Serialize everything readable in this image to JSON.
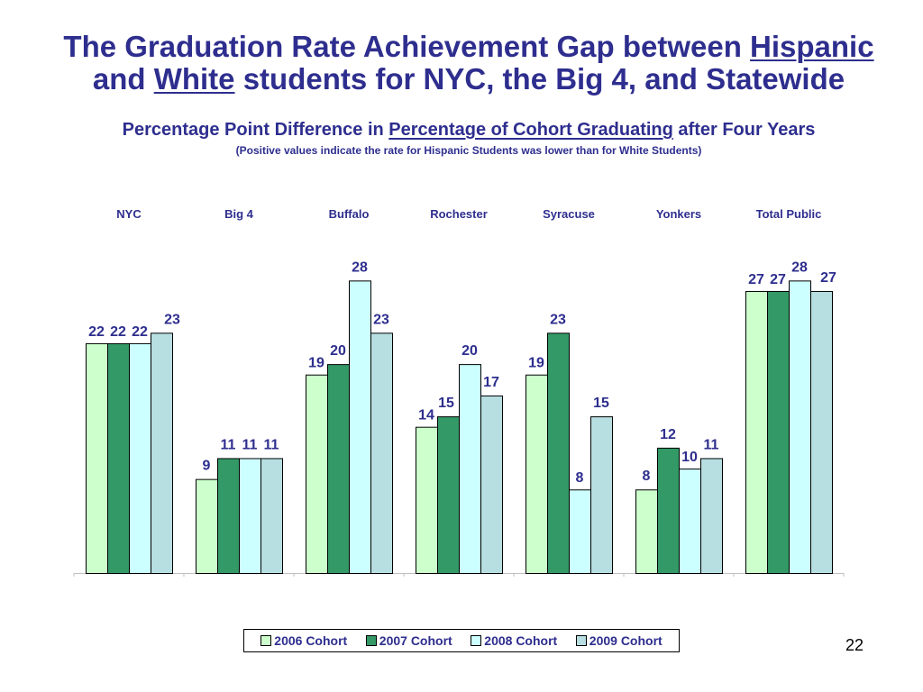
{
  "title": {
    "part1": "The Graduation Rate Achievement Gap between ",
    "hispanic": "Hispanic",
    "part2": "and ",
    "white": "White",
    "part3": " students for NYC, the Big 4, and Statewide"
  },
  "subtitle": {
    "part1": "Percentage Point Difference in ",
    "underlined": "Percentage of Cohort Graduating",
    "part2": " after Four Years"
  },
  "note": "(Positive values indicate the rate for Hispanic Students was lower than for White Students)",
  "page_number": "22",
  "colors": {
    "text": "#2e2e8f",
    "series": [
      "#ccffcc",
      "#339966",
      "#ccffff",
      "#b7dee0"
    ]
  },
  "chart_data": {
    "type": "bar",
    "categories": [
      "NYC",
      "Big 4",
      "Buffalo",
      "Rochester",
      "Syracuse",
      "Yonkers",
      "Total Public"
    ],
    "series": [
      {
        "name": "2006 Cohort",
        "values": [
          22,
          9,
          19,
          14,
          19,
          8,
          27
        ]
      },
      {
        "name": "2007 Cohort",
        "values": [
          22,
          11,
          20,
          15,
          23,
          12,
          27
        ]
      },
      {
        "name": "2008 Cohort",
        "values": [
          22,
          11,
          28,
          20,
          8,
          10,
          28
        ]
      },
      {
        "name": "2009 Cohort",
        "values": [
          23,
          11,
          23,
          17,
          15,
          11,
          27
        ]
      }
    ],
    "ylim": [
      0,
      34.5
    ],
    "grid": false,
    "legend": "bottom-center",
    "category_labels_position": "top"
  }
}
